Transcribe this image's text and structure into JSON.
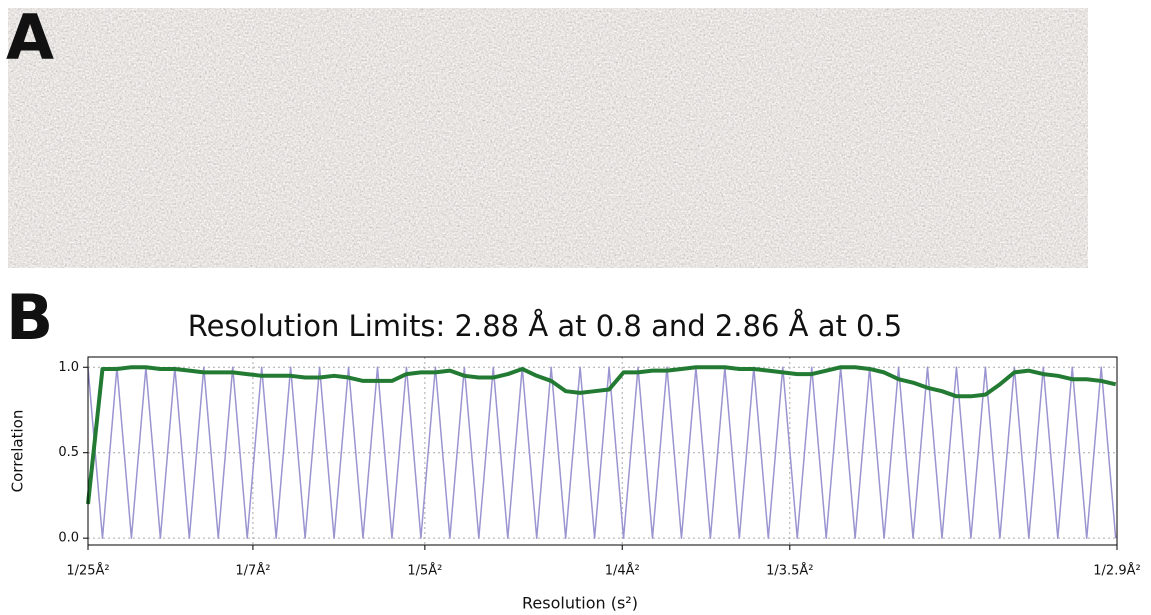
{
  "figure": {
    "panel_labels": [
      "A",
      "B"
    ]
  },
  "chart_data": {
    "type": "line",
    "title": "Resolution Limits: 2.88 Å at 0.8 and 2.86 Å at 0.5",
    "x_label": "Resolution (s²)",
    "y_label": "Correlation",
    "x": [
      0.0016,
      0.00325,
      0.0049,
      0.00655,
      0.0082,
      0.00985,
      0.0115,
      0.01315,
      0.0148,
      0.01645,
      0.0181,
      0.01975,
      0.0214,
      0.02305,
      0.0247,
      0.02635,
      0.028,
      0.02965,
      0.0313,
      0.03295,
      0.0346,
      0.03625,
      0.0379,
      0.03955,
      0.0412,
      0.04285,
      0.0445,
      0.04615,
      0.0478,
      0.04945,
      0.0511,
      0.05275,
      0.0544,
      0.05605,
      0.0577,
      0.05935,
      0.061,
      0.06265,
      0.0643,
      0.06595,
      0.0676,
      0.06925,
      0.0709,
      0.07255,
      0.0742,
      0.07585,
      0.0775,
      0.07915,
      0.0808,
      0.08245,
      0.0841,
      0.08575,
      0.0874,
      0.08905,
      0.0907,
      0.09235,
      0.094,
      0.09565,
      0.0973,
      0.09895,
      0.1006,
      0.10225,
      0.1039,
      0.10555,
      0.1072,
      0.10885,
      0.1105,
      0.11215,
      0.1138,
      0.11545,
      0.1171,
      0.11875
    ],
    "series": [
      {
        "color": "#9a94d0",
        "width": 1.5,
        "values": [
          1,
          0,
          1,
          0,
          1,
          0,
          1,
          0,
          1,
          0,
          1,
          0,
          1,
          0,
          1,
          0,
          1,
          0,
          1,
          0,
          1,
          0,
          1,
          0,
          1,
          0,
          1,
          0,
          1,
          0,
          1,
          0,
          1,
          0,
          1,
          0,
          1,
          0,
          1,
          0,
          1,
          0,
          1,
          0,
          1,
          0,
          1,
          0,
          1,
          0,
          1,
          0,
          1,
          0,
          1,
          0,
          1,
          0,
          1,
          0,
          1,
          0,
          1,
          0,
          1,
          0,
          1,
          0,
          1,
          0,
          1,
          0
        ]
      },
      {
        "color": "#237a33",
        "width": 4,
        "values": [
          0.2,
          0.99,
          0.99,
          1.0,
          1.0,
          0.99,
          0.99,
          0.98,
          0.97,
          0.97,
          0.97,
          0.96,
          0.95,
          0.95,
          0.95,
          0.94,
          0.94,
          0.95,
          0.94,
          0.92,
          0.92,
          0.92,
          0.96,
          0.97,
          0.97,
          0.98,
          0.95,
          0.94,
          0.94,
          0.96,
          0.99,
          0.95,
          0.92,
          0.86,
          0.85,
          0.86,
          0.87,
          0.97,
          0.97,
          0.98,
          0.98,
          0.99,
          1.0,
          1.0,
          1.0,
          0.99,
          0.99,
          0.98,
          0.97,
          0.96,
          0.96,
          0.98,
          1.0,
          1.0,
          0.99,
          0.97,
          0.93,
          0.91,
          0.88,
          0.86,
          0.83,
          0.83,
          0.84,
          0.9,
          0.97,
          0.98,
          0.96,
          0.95,
          0.93,
          0.93,
          0.92,
          0.9
        ]
      }
    ],
    "xlim": [
      0.0016,
      0.1189
    ],
    "ylim": [
      -0.04,
      1.06
    ],
    "xticks": [
      {
        "value": 0.0016,
        "label": "1/25Å²"
      },
      {
        "value": 0.0204,
        "label": "1/7Å²"
      },
      {
        "value": 0.04,
        "label": "1/5Å²"
      },
      {
        "value": 0.0625,
        "label": "1/4Å²"
      },
      {
        "value": 0.0816,
        "label": "1/3.5Å²"
      },
      {
        "value": 0.1189,
        "label": "1/2.9Å²"
      }
    ],
    "yticks": [
      {
        "value": 0,
        "label": "0.0"
      },
      {
        "value": 0.5,
        "label": "0.5"
      },
      {
        "value": 1,
        "label": "1.0"
      }
    ],
    "grid": true
  }
}
